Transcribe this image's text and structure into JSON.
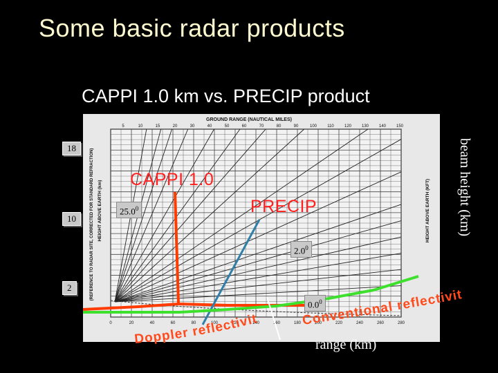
{
  "slide": {
    "title": "Some basic radar products",
    "subtitle": "CAPPI 1.0 km vs. PRECIP product"
  },
  "chart": {
    "header": "GROUND RANGE (NAUTICAL MILES)",
    "left_axis_label": "HEIGHT ABOVE EARTH (km)",
    "left_axis_note": "(REFERENCE TO RADAR SITE, CORRECTED FOR STANDARD REFRACTION)",
    "right_axis_label": "HEIGHT ABOVE EARTH (KFT)",
    "top_ticks": [
      "5",
      "10",
      "15",
      "20",
      "30",
      "40",
      "50",
      "60",
      "70",
      "80",
      "90",
      "100",
      "110",
      "120",
      "130",
      "140",
      "150"
    ],
    "bottom_ticks": [
      "0",
      "20",
      "40",
      "60",
      "80",
      "100",
      "120",
      "140",
      "160",
      "180",
      "200",
      "220",
      "240",
      "260",
      "280"
    ]
  },
  "labels": {
    "height_18": "18",
    "height_10": "10",
    "height_2": "2",
    "cappi": "CAPPI 1.0",
    "precip": "PRECIP",
    "angle_25": "25.0",
    "angle_2": "2.0",
    "angle_0": "0.0",
    "degree": "0",
    "beam_height": "beam height (km)",
    "range": "range (km)",
    "doppler": "Doppler reflectivity",
    "conventional": "Conventional reflectivity"
  },
  "colors": {
    "title": "#fffbd0",
    "cappi_line": "#ff3b00",
    "precip_line": "#2f7fa8",
    "conventional_line": "#3ee02e",
    "doppler_text": "#ff4a1c",
    "conventional_text": "#ff4a1c"
  }
}
